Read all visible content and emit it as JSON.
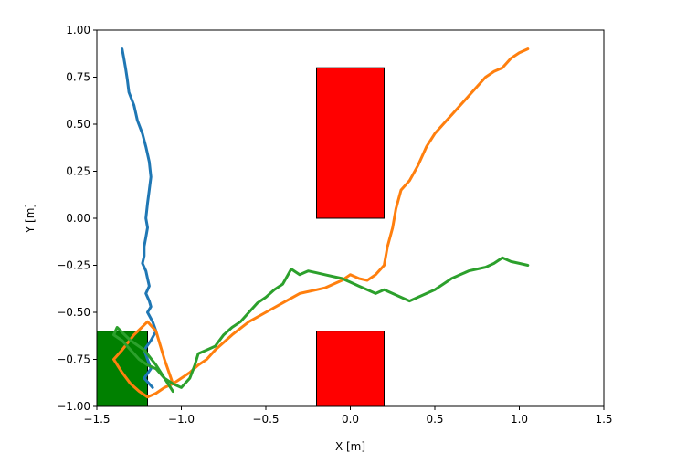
{
  "chart_data": {
    "type": "line",
    "title": "",
    "xlabel": "X [m]",
    "ylabel": "Y [m]",
    "xlim": [
      -1.5,
      1.5
    ],
    "ylim": [
      -1.0,
      1.0
    ],
    "xticks": [
      -1.5,
      -1.0,
      -0.5,
      0.0,
      0.5,
      1.0,
      1.5
    ],
    "yticks": [
      -1.0,
      -0.75,
      -0.5,
      -0.25,
      0.0,
      0.25,
      0.5,
      0.75,
      1.0
    ],
    "xtick_labels": [
      "−1.5",
      "−1.0",
      "−0.5",
      "0.0",
      "0.5",
      "1.0",
      "1.5"
    ],
    "ytick_labels": [
      "−1.00",
      "−0.75",
      "−0.50",
      "−0.25",
      "0.00",
      "0.25",
      "0.50",
      "0.75",
      "1.00"
    ],
    "grid": false,
    "legend": "none",
    "obstacles": [
      {
        "x": [
          -0.2,
          0.2
        ],
        "y": [
          0.0,
          0.8
        ],
        "color": "#ff0000"
      },
      {
        "x": [
          -0.2,
          0.2
        ],
        "y": [
          -1.0,
          -0.6
        ],
        "color": "#ff0000"
      }
    ],
    "goal_region": {
      "x": [
        -1.5,
        -1.2
      ],
      "y": [
        -1.0,
        -0.6
      ],
      "color": "#008000"
    },
    "series": [
      {
        "color": "#1f77b4",
        "x": [
          -1.35,
          -1.34,
          -1.33,
          -1.32,
          -1.31,
          -1.28,
          -1.26,
          -1.23,
          -1.21,
          -1.19,
          -1.18,
          -1.19,
          -1.2,
          -1.21,
          -1.2,
          -1.21,
          -1.22,
          -1.22,
          -1.23,
          -1.21,
          -1.2,
          -1.19,
          -1.21,
          -1.19,
          -1.18,
          -1.2,
          -1.17,
          -1.15,
          -1.18,
          -1.22,
          -1.2,
          -1.18,
          -1.22,
          -1.19,
          -1.17
        ],
        "y": [
          0.9,
          0.85,
          0.8,
          0.74,
          0.67,
          0.6,
          0.52,
          0.45,
          0.38,
          0.3,
          0.22,
          0.15,
          0.08,
          0.0,
          -0.05,
          -0.1,
          -0.15,
          -0.2,
          -0.24,
          -0.28,
          -0.32,
          -0.36,
          -0.4,
          -0.44,
          -0.47,
          -0.5,
          -0.55,
          -0.6,
          -0.65,
          -0.7,
          -0.75,
          -0.8,
          -0.85,
          -0.88,
          -0.9
        ]
      },
      {
        "color": "#ff7f0e",
        "x": [
          1.05,
          1.0,
          0.95,
          0.9,
          0.85,
          0.8,
          0.75,
          0.7,
          0.65,
          0.6,
          0.55,
          0.5,
          0.45,
          0.42,
          0.4,
          0.35,
          0.3,
          0.27,
          0.25,
          0.22,
          0.2,
          0.15,
          0.1,
          0.05,
          0.0,
          -0.05,
          -0.1,
          -0.15,
          -0.2,
          -0.3,
          -0.4,
          -0.5,
          -0.6,
          -0.7,
          -0.75,
          -0.8,
          -0.85,
          -0.9,
          -0.95,
          -1.0,
          -1.05,
          -1.1,
          -1.15,
          -1.2,
          -1.25,
          -1.3,
          -1.35,
          -1.4,
          -1.35,
          -1.28,
          -1.2,
          -1.15,
          -1.1,
          -1.05
        ],
        "y": [
          0.9,
          0.88,
          0.85,
          0.8,
          0.78,
          0.75,
          0.7,
          0.65,
          0.6,
          0.55,
          0.5,
          0.45,
          0.38,
          0.32,
          0.28,
          0.2,
          0.15,
          0.05,
          -0.05,
          -0.15,
          -0.25,
          -0.3,
          -0.33,
          -0.32,
          -0.3,
          -0.33,
          -0.35,
          -0.37,
          -0.38,
          -0.4,
          -0.45,
          -0.5,
          -0.55,
          -0.62,
          -0.66,
          -0.7,
          -0.75,
          -0.78,
          -0.82,
          -0.85,
          -0.88,
          -0.9,
          -0.93,
          -0.95,
          -0.92,
          -0.88,
          -0.82,
          -0.75,
          -0.7,
          -0.62,
          -0.55,
          -0.6,
          -0.75,
          -0.88
        ]
      },
      {
        "color": "#2ca02c",
        "x": [
          1.05,
          1.0,
          0.95,
          0.9,
          0.85,
          0.8,
          0.75,
          0.7,
          0.65,
          0.6,
          0.55,
          0.5,
          0.45,
          0.4,
          0.35,
          0.3,
          0.25,
          0.2,
          0.15,
          0.1,
          0.05,
          0.0,
          -0.05,
          -0.1,
          -0.15,
          -0.2,
          -0.25,
          -0.3,
          -0.35,
          -0.4,
          -0.45,
          -0.5,
          -0.55,
          -0.6,
          -0.65,
          -0.7,
          -0.75,
          -0.8,
          -0.85,
          -0.9,
          -0.92,
          -0.95,
          -1.0,
          -1.05,
          -1.1,
          -1.15,
          -1.2,
          -1.25,
          -1.3,
          -1.35,
          -1.4,
          -1.38,
          -1.3,
          -1.22,
          -1.15,
          -1.1,
          -1.05
        ],
        "y": [
          -0.25,
          -0.24,
          -0.23,
          -0.21,
          -0.24,
          -0.26,
          -0.27,
          -0.28,
          -0.3,
          -0.32,
          -0.35,
          -0.38,
          -0.4,
          -0.42,
          -0.44,
          -0.42,
          -0.4,
          -0.38,
          -0.4,
          -0.38,
          -0.36,
          -0.34,
          -0.32,
          -0.31,
          -0.3,
          -0.29,
          -0.28,
          -0.3,
          -0.27,
          -0.35,
          -0.38,
          -0.42,
          -0.45,
          -0.5,
          -0.55,
          -0.58,
          -0.62,
          -0.68,
          -0.7,
          -0.72,
          -0.78,
          -0.85,
          -0.9,
          -0.88,
          -0.85,
          -0.8,
          -0.78,
          -0.75,
          -0.7,
          -0.65,
          -0.62,
          -0.58,
          -0.65,
          -0.7,
          -0.78,
          -0.85,
          -0.92
        ]
      }
    ]
  }
}
